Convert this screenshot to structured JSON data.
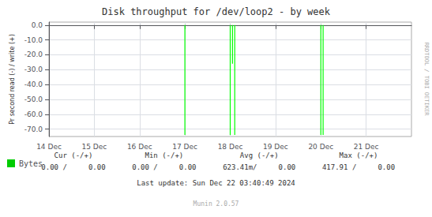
{
  "chart_data": {
    "type": "spike",
    "title": "Disk throughput for /dev/loop2 - by week",
    "ylabel": "Pr second read (-) / write (+)",
    "xlim": [
      0,
      8
    ],
    "xticks": [
      {
        "value": 0,
        "label": "14 Dec"
      },
      {
        "value": 1,
        "label": "15 Dec"
      },
      {
        "value": 2,
        "label": "16 Dec"
      },
      {
        "value": 3,
        "label": "17 Dec"
      },
      {
        "value": 4,
        "label": "18 Dec"
      },
      {
        "value": 5,
        "label": "19 Dec"
      },
      {
        "value": 6,
        "label": "20 Dec"
      },
      {
        "value": 7,
        "label": "21 Dec"
      }
    ],
    "ylim": [
      -75,
      2
    ],
    "yticks": [
      {
        "value": 0,
        "label": "0.0"
      },
      {
        "value": -10,
        "label": "-10.0"
      },
      {
        "value": -20,
        "label": "-20.0"
      },
      {
        "value": -30,
        "label": "-30.0"
      },
      {
        "value": -40,
        "label": "-40.0"
      },
      {
        "value": -50,
        "label": "-50.0"
      },
      {
        "value": -60,
        "label": "-60.0"
      },
      {
        "value": -70,
        "label": "-70.0"
      }
    ],
    "grid": true,
    "legend": "bottom left",
    "series": [
      {
        "name": "Bytes",
        "color": "#00cc00",
        "colors": [
          "#00ff00",
          "#00ff00",
          "#00ff00",
          "#00ff00",
          "#00ff00",
          "#00ff00"
        ],
        "x": [
          3.0,
          4.0,
          4.05,
          4.1,
          6.0,
          6.05
        ],
        "y_bottom": [
          -74,
          -74,
          -26,
          -74,
          -74,
          -74
        ],
        "y_top": [
          0,
          0,
          0,
          0,
          0,
          0
        ]
      }
    ],
    "annotations": [
      "Cur (-/+)",
      "Min (-/+)",
      "Avg (-/+)",
      "Max (-/+)",
      "0.00 /     0.00",
      "0.00 /     0.00",
      "623.41m/     0.00",
      "417.91 /     0.00",
      "Last update: Sun Dec 22 03:40:49 2024",
      "Munin 2.0.57",
      "RRDTOOL / TOBI OETIKER"
    ]
  }
}
